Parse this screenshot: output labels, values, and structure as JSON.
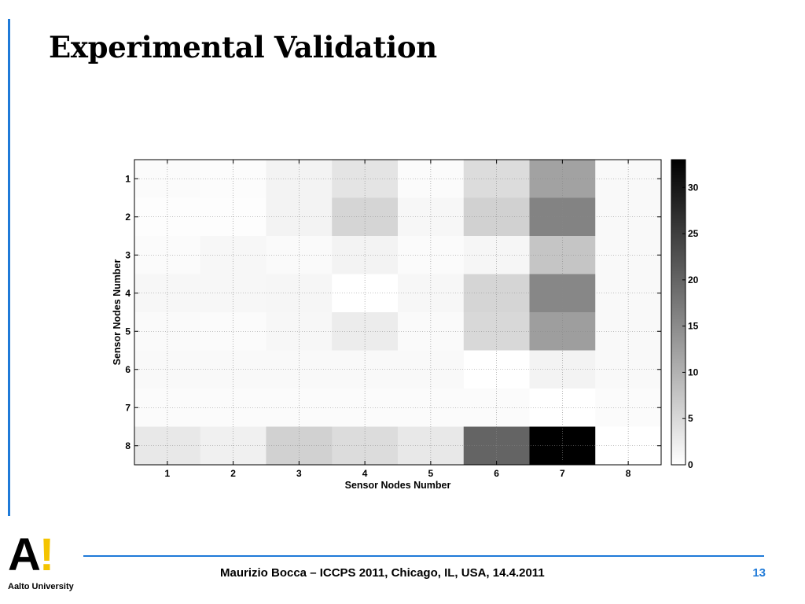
{
  "slide": {
    "title": "Experimental Validation",
    "footer": "Maurizio Bocca – ICCPS 2011, Chicago, IL, USA, 14.4.2011",
    "page_number": "13",
    "logo_mark": "A",
    "logo_excl": "!",
    "logo_caption": "Aalto University",
    "accent_color": "#1f7ad8",
    "logo_accent_color": "#f4c400"
  },
  "chart_data": {
    "type": "heatmap",
    "title": "",
    "xlabel": "Sensor Nodes Number",
    "ylabel": "Sensor Nodes Number",
    "x_categories": [
      "1",
      "2",
      "3",
      "4",
      "5",
      "6",
      "7",
      "8"
    ],
    "y_categories": [
      "1",
      "2",
      "3",
      "4",
      "5",
      "6",
      "7",
      "8"
    ],
    "colormap": "gray-reversed",
    "clim": [
      0,
      33
    ],
    "colorbar_ticks": [
      0,
      5,
      10,
      15,
      20,
      25,
      30
    ],
    "grid": true,
    "values": [
      [
        0.5,
        0.4,
        1.5,
        3.5,
        0.5,
        4.5,
        12,
        0.8
      ],
      [
        0.2,
        0.2,
        1.5,
        5.5,
        1,
        6,
        16,
        0.8
      ],
      [
        0.5,
        1,
        0.6,
        1.5,
        0.5,
        1.2,
        7.5,
        0.8
      ],
      [
        1,
        1,
        1.2,
        0,
        1,
        5.5,
        15.5,
        0.8
      ],
      [
        0.7,
        0.5,
        1,
        2.5,
        0.6,
        5,
        12.5,
        0.8
      ],
      [
        0.8,
        0.8,
        0.8,
        0.8,
        0.8,
        0,
        1.5,
        0.8
      ],
      [
        0.5,
        0.5,
        0.5,
        0.5,
        0.5,
        0.5,
        0,
        0.5
      ],
      [
        3,
        2,
        6,
        4.5,
        3,
        20,
        33,
        0
      ]
    ]
  }
}
